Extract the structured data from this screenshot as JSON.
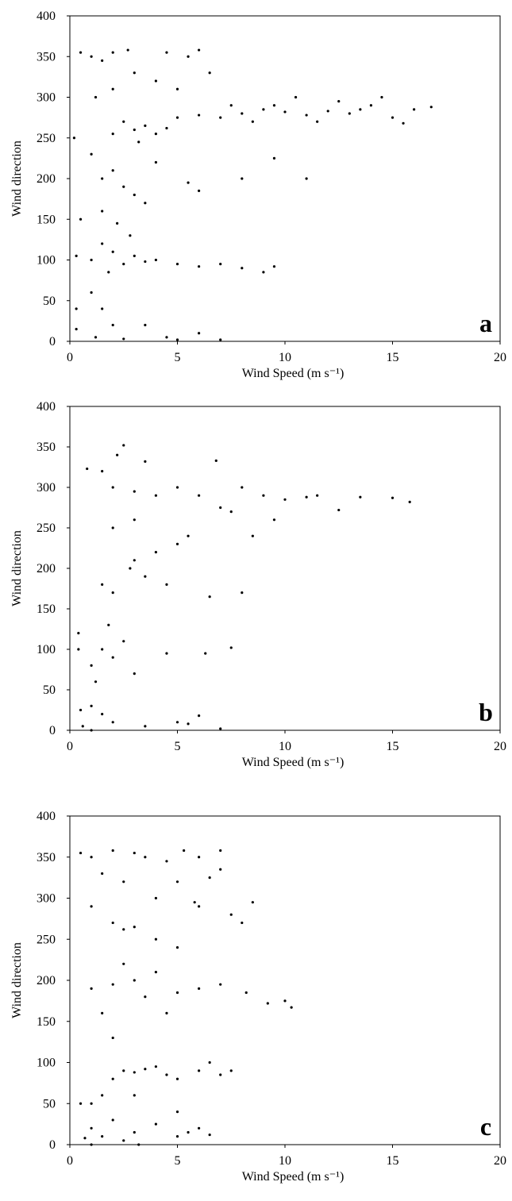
{
  "chart_data": [
    {
      "type": "scatter",
      "panel_label": "a",
      "x_label": "Wind Speed (m s⁻¹)",
      "y_label": "Wind direction",
      "color": "#000000",
      "xlim": [
        0,
        20
      ],
      "ylim": [
        0,
        400
      ],
      "xticks": [
        0,
        5,
        10,
        15,
        20
      ],
      "yticks": [
        0,
        50,
        100,
        150,
        200,
        250,
        300,
        350,
        400
      ],
      "x": [
        8,
        9,
        10,
        11,
        12,
        13,
        14,
        15,
        16,
        16.8,
        7,
        6,
        9.5,
        11.5,
        12.5,
        10.5,
        8.5,
        7.5,
        13.5,
        14.5,
        15.5,
        3,
        3.5,
        4,
        2.5,
        4.5,
        5,
        2,
        3.2,
        0.5,
        1,
        1.5,
        2,
        2.7,
        4.5,
        5.5,
        6,
        3,
        4,
        5,
        6.5,
        1.2,
        2,
        1.5,
        2.5,
        3,
        2,
        5.5,
        6,
        4,
        3.5,
        1,
        8,
        9.5,
        11,
        1,
        2,
        2.5,
        3,
        3.5,
        4,
        5,
        6,
        7,
        8,
        9,
        9.5,
        1.5,
        1.8,
        2.8,
        0.3,
        1,
        1.5,
        2,
        1.2,
        2.5,
        5,
        6,
        7,
        0.3,
        0.3,
        3.5,
        4.5,
        0.2,
        0.5,
        1.5,
        2.2
      ],
      "values": [
        280,
        285,
        282,
        278,
        283,
        280,
        290,
        275,
        285,
        288,
        275,
        278,
        290,
        270,
        295,
        300,
        270,
        290,
        285,
        300,
        268,
        260,
        265,
        255,
        270,
        262,
        275,
        255,
        245,
        355,
        350,
        345,
        355,
        358,
        355,
        350,
        358,
        330,
        320,
        310,
        330,
        300,
        310,
        200,
        190,
        180,
        210,
        195,
        185,
        220,
        170,
        230,
        200,
        225,
        200,
        100,
        110,
        95,
        105,
        98,
        100,
        95,
        92,
        95,
        90,
        85,
        92,
        120,
        85,
        130,
        105,
        60,
        40,
        20,
        5,
        3,
        2,
        10,
        2,
        15,
        40,
        20,
        5,
        250,
        150,
        160,
        145
      ]
    },
    {
      "type": "scatter",
      "panel_label": "b",
      "x_label": "Wind Speed (m s⁻¹)",
      "y_label": "Wind direction",
      "color": "#000000",
      "xlim": [
        0,
        20
      ],
      "ylim": [
        0,
        400
      ],
      "xticks": [
        0,
        5,
        10,
        15,
        20
      ],
      "yticks": [
        0,
        50,
        100,
        150,
        200,
        250,
        300,
        350,
        400
      ],
      "x": [
        10,
        11,
        11.5,
        12.5,
        13.5,
        15,
        15.8,
        9,
        8,
        7,
        6,
        5,
        4,
        3,
        2,
        1.5,
        0.8,
        2.5,
        3.5,
        6.8,
        2.2,
        3,
        2.8,
        4,
        5,
        4.5,
        3.5,
        2,
        1.5,
        6.5,
        8,
        2,
        3,
        9.5,
        8.5,
        7.5,
        5.5,
        1.5,
        2.5,
        1,
        2,
        3,
        4.5,
        6.3,
        7.5,
        1.8,
        0.4,
        0.4,
        1.2,
        0.5,
        1,
        1.5,
        2,
        3.5,
        5,
        6,
        7,
        0.6,
        1,
        5.5
      ],
      "values": [
        285,
        288,
        290,
        272,
        288,
        287,
        282,
        290,
        300,
        275,
        290,
        300,
        290,
        295,
        300,
        320,
        323,
        352,
        332,
        333,
        340,
        210,
        200,
        220,
        230,
        180,
        190,
        170,
        180,
        165,
        170,
        250,
        260,
        260,
        240,
        270,
        240,
        100,
        110,
        80,
        90,
        70,
        95,
        95,
        102,
        130,
        120,
        100,
        60,
        25,
        30,
        20,
        10,
        5,
        10,
        18,
        2,
        5,
        0,
        8
      ]
    },
    {
      "type": "scatter",
      "panel_label": "c",
      "x_label": "Wind Speed (m s⁻¹)",
      "y_label": "Wind direction",
      "color": "#000000",
      "xlim": [
        0,
        20
      ],
      "ylim": [
        0,
        400
      ],
      "xticks": [
        0,
        5,
        10,
        15,
        20
      ],
      "yticks": [
        0,
        50,
        100,
        150,
        200,
        250,
        300,
        350,
        400
      ],
      "x": [
        0.5,
        1,
        2,
        3,
        3.5,
        4.5,
        5.3,
        6,
        7,
        1.5,
        2.5,
        5,
        6.5,
        7,
        4,
        5.8,
        6,
        8.5,
        7.5,
        8,
        2,
        2.5,
        3,
        1,
        4,
        5,
        1,
        2,
        3,
        4,
        5,
        6,
        7,
        8.2,
        9.2,
        10,
        10.3,
        3.5,
        2.5,
        1.5,
        2,
        4.5,
        2.5,
        3,
        3.5,
        4,
        4.5,
        5,
        6,
        7,
        7.5,
        2,
        1.5,
        1,
        0.5,
        3,
        5,
        6.5,
        1,
        1.5,
        2,
        2.5,
        3,
        4,
        5,
        5.5,
        6,
        6.5,
        1,
        0.7,
        3.2
      ],
      "values": [
        355,
        350,
        358,
        355,
        350,
        345,
        358,
        350,
        358,
        330,
        320,
        320,
        325,
        335,
        300,
        295,
        290,
        295,
        280,
        270,
        270,
        262,
        265,
        290,
        250,
        240,
        190,
        195,
        200,
        210,
        185,
        190,
        195,
        185,
        172,
        175,
        167,
        180,
        220,
        160,
        130,
        160,
        90,
        88,
        92,
        95,
        85,
        80,
        90,
        85,
        90,
        80,
        60,
        50,
        50,
        60,
        40,
        100,
        20,
        10,
        30,
        5,
        15,
        25,
        10,
        15,
        20,
        12,
        0,
        8,
        0
      ]
    }
  ]
}
